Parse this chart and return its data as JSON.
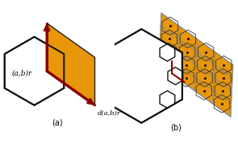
{
  "fig_width": 2.95,
  "fig_height": 1.84,
  "dpi": 100,
  "bg_color": "#ffffff",
  "hex_fill": "#ffffff",
  "hex_edge": "#111111",
  "hex_lw": 1.4,
  "orange_fill": "#e8960a",
  "orange_edge": "#222222",
  "arrow_color": "#8b0000",
  "label_a": "(a,b)r",
  "label_d": "d(a,b)r",
  "label_left": "(a)",
  "label_right": "(b)",
  "grid_line_color": "#888888",
  "dot_color": "#111111",
  "small_hex_edge": "#333333"
}
